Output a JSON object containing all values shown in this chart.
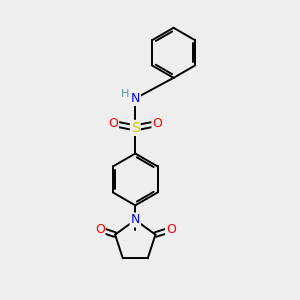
{
  "background_color": "#eeeeee",
  "bond_color": "#000000",
  "atom_colors": {
    "N": "#0000ff",
    "O": "#ff0000",
    "S": "#cccc00",
    "H": "#5a9a9a",
    "C": "#000000"
  },
  "figsize": [
    3.0,
    3.0
  ],
  "dpi": 100,
  "xlim": [
    0,
    10
  ],
  "ylim": [
    0,
    10
  ]
}
